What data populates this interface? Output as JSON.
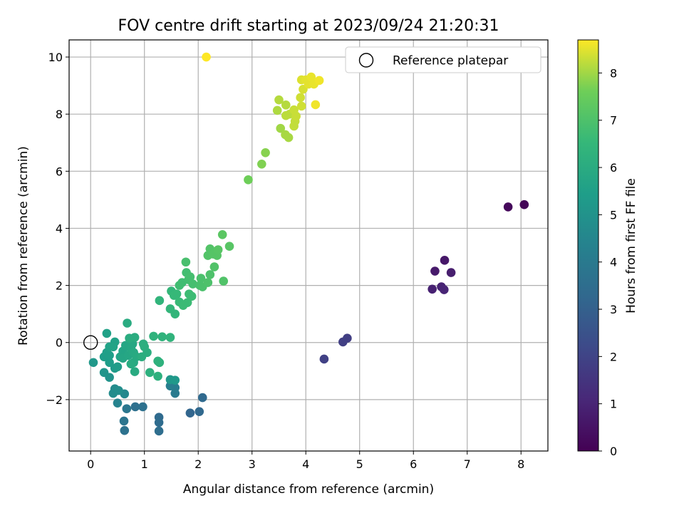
{
  "chart_data": {
    "type": "scatter",
    "title": "FOV centre drift starting at 2023/09/24 21:20:31",
    "xlabel": "Angular distance from reference (arcmin)",
    "ylabel": "Rotation from reference (arcmin)",
    "xlim": [
      -0.4,
      8.5
    ],
    "ylim": [
      -3.8,
      10.6
    ],
    "xticks": [
      0,
      1,
      2,
      3,
      4,
      5,
      6,
      7,
      8
    ],
    "yticks": [
      -2,
      0,
      2,
      4,
      6,
      8,
      10
    ],
    "grid": true,
    "legend": {
      "position": "top-right",
      "entries": [
        "Reference platepar"
      ]
    },
    "reference_point": {
      "label": "Reference platepar",
      "x": 0,
      "y": 0
    },
    "colorbar": {
      "label": "Hours from first FF file",
      "colormap": "viridis",
      "range": [
        0,
        8.7
      ],
      "ticks": [
        0,
        1,
        2,
        3,
        4,
        5,
        6,
        7,
        8
      ]
    },
    "points": [
      {
        "x": 8.06,
        "y": 4.83,
        "c": 0.1
      },
      {
        "x": 7.76,
        "y": 4.75,
        "c": 0.2
      },
      {
        "x": 6.58,
        "y": 2.88,
        "c": 0.6
      },
      {
        "x": 6.4,
        "y": 2.5,
        "c": 0.7
      },
      {
        "x": 6.7,
        "y": 2.45,
        "c": 0.8
      },
      {
        "x": 6.35,
        "y": 1.87,
        "c": 0.9
      },
      {
        "x": 6.52,
        "y": 1.95,
        "c": 0.95
      },
      {
        "x": 6.57,
        "y": 1.85,
        "c": 1.0
      },
      {
        "x": 4.77,
        "y": 0.15,
        "c": 1.8
      },
      {
        "x": 4.69,
        "y": 0.02,
        "c": 1.85
      },
      {
        "x": 4.34,
        "y": -0.58,
        "c": 1.9
      },
      {
        "x": 1.85,
        "y": -2.47,
        "c": 3.2
      },
      {
        "x": 2.02,
        "y": -2.42,
        "c": 3.3
      },
      {
        "x": 2.08,
        "y": -1.93,
        "c": 3.35
      },
      {
        "x": 1.27,
        "y": -2.62,
        "c": 3.4
      },
      {
        "x": 1.27,
        "y": -2.8,
        "c": 3.45
      },
      {
        "x": 1.27,
        "y": -3.1,
        "c": 3.5
      },
      {
        "x": 0.83,
        "y": -2.25,
        "c": 3.6
      },
      {
        "x": 0.97,
        "y": -2.25,
        "c": 3.65
      },
      {
        "x": 0.63,
        "y": -3.08,
        "c": 3.7
      },
      {
        "x": 0.62,
        "y": -2.75,
        "c": 3.8
      },
      {
        "x": 0.67,
        "y": -2.32,
        "c": 3.9
      },
      {
        "x": 1.57,
        "y": -1.78,
        "c": 4.0
      },
      {
        "x": 1.57,
        "y": -1.58,
        "c": 4.1
      },
      {
        "x": 1.48,
        "y": -1.52,
        "c": 4.2
      },
      {
        "x": 0.5,
        "y": -2.12,
        "c": 4.4
      },
      {
        "x": 0.63,
        "y": -1.8,
        "c": 4.6
      },
      {
        "x": 0.45,
        "y": -1.62,
        "c": 4.7
      },
      {
        "x": 0.42,
        "y": -1.78,
        "c": 4.75
      },
      {
        "x": 0.52,
        "y": -1.68,
        "c": 4.8
      },
      {
        "x": 0.35,
        "y": -1.22,
        "c": 5.0
      },
      {
        "x": 0.25,
        "y": -1.05,
        "c": 5.1
      },
      {
        "x": 0.05,
        "y": -0.7,
        "c": 5.2
      },
      {
        "x": 1.48,
        "y": -1.3,
        "c": 5.2
      },
      {
        "x": 1.57,
        "y": -1.32,
        "c": 5.25
      },
      {
        "x": 0.45,
        "y": -0.9,
        "c": 5.3
      },
      {
        "x": 0.5,
        "y": -0.85,
        "c": 5.35
      },
      {
        "x": 0.35,
        "y": -0.7,
        "c": 5.4
      },
      {
        "x": 0.25,
        "y": -0.5,
        "c": 5.45
      },
      {
        "x": 0.35,
        "y": -0.45,
        "c": 5.5
      },
      {
        "x": 0.3,
        "y": -0.35,
        "c": 5.5
      },
      {
        "x": 0.3,
        "y": 0.32,
        "c": 5.55
      },
      {
        "x": 0.35,
        "y": -0.15,
        "c": 5.6
      },
      {
        "x": 0.45,
        "y": 0.02,
        "c": 5.6
      },
      {
        "x": 0.42,
        "y": -0.15,
        "c": 5.65
      },
      {
        "x": 0.55,
        "y": -0.5,
        "c": 5.7
      },
      {
        "x": 0.6,
        "y": -0.3,
        "c": 5.7
      },
      {
        "x": 0.6,
        "y": -0.55,
        "c": 5.75
      },
      {
        "x": 0.65,
        "y": -0.1,
        "c": 5.8
      },
      {
        "x": 0.7,
        "y": -0.45,
        "c": 5.8
      },
      {
        "x": 0.75,
        "y": -0.2,
        "c": 5.85
      },
      {
        "x": 0.78,
        "y": -0.05,
        "c": 5.85
      },
      {
        "x": 0.8,
        "y": -0.35,
        "c": 5.9
      },
      {
        "x": 0.8,
        "y": -0.7,
        "c": 5.9
      },
      {
        "x": 0.85,
        "y": -0.5,
        "c": 5.95
      },
      {
        "x": 0.82,
        "y": -1.02,
        "c": 5.95
      },
      {
        "x": 0.75,
        "y": -0.75,
        "c": 6.0
      },
      {
        "x": 0.68,
        "y": 0.68,
        "c": 6.0
      },
      {
        "x": 0.72,
        "y": 0.15,
        "c": 6.05
      },
      {
        "x": 0.82,
        "y": 0.18,
        "c": 6.05
      },
      {
        "x": 0.95,
        "y": -0.5,
        "c": 6.1
      },
      {
        "x": 1.05,
        "y": -0.35,
        "c": 6.1
      },
      {
        "x": 1.0,
        "y": -0.15,
        "c": 6.15
      },
      {
        "x": 0.98,
        "y": -0.05,
        "c": 6.15
      },
      {
        "x": 1.1,
        "y": -1.05,
        "c": 6.2
      },
      {
        "x": 1.25,
        "y": -1.18,
        "c": 6.2
      },
      {
        "x": 1.25,
        "y": -0.65,
        "c": 6.25
      },
      {
        "x": 1.28,
        "y": -0.7,
        "c": 6.25
      },
      {
        "x": 1.17,
        "y": 0.22,
        "c": 6.3
      },
      {
        "x": 1.33,
        "y": 0.2,
        "c": 6.3
      },
      {
        "x": 1.48,
        "y": 0.18,
        "c": 6.35
      },
      {
        "x": 1.28,
        "y": 1.47,
        "c": 6.4
      },
      {
        "x": 1.48,
        "y": 1.18,
        "c": 6.45
      },
      {
        "x": 1.57,
        "y": 1.0,
        "c": 6.45
      },
      {
        "x": 1.5,
        "y": 1.8,
        "c": 6.5
      },
      {
        "x": 1.55,
        "y": 1.65,
        "c": 6.55
      },
      {
        "x": 1.6,
        "y": 1.7,
        "c": 6.55
      },
      {
        "x": 1.65,
        "y": 1.42,
        "c": 6.6
      },
      {
        "x": 1.72,
        "y": 1.3,
        "c": 6.65
      },
      {
        "x": 1.8,
        "y": 1.4,
        "c": 6.65
      },
      {
        "x": 1.83,
        "y": 1.7,
        "c": 6.7
      },
      {
        "x": 1.88,
        "y": 1.62,
        "c": 6.7
      },
      {
        "x": 1.65,
        "y": 2.0,
        "c": 6.75
      },
      {
        "x": 1.7,
        "y": 2.1,
        "c": 6.75
      },
      {
        "x": 1.78,
        "y": 2.45,
        "c": 6.8
      },
      {
        "x": 1.82,
        "y": 2.2,
        "c": 6.8
      },
      {
        "x": 1.85,
        "y": 2.3,
        "c": 6.85
      },
      {
        "x": 1.9,
        "y": 2.05,
        "c": 6.85
      },
      {
        "x": 1.77,
        "y": 2.82,
        "c": 6.9
      },
      {
        "x": 2.03,
        "y": 2.0,
        "c": 6.9
      },
      {
        "x": 2.05,
        "y": 2.25,
        "c": 6.95
      },
      {
        "x": 2.08,
        "y": 1.95,
        "c": 6.95
      },
      {
        "x": 2.18,
        "y": 2.1,
        "c": 7.0
      },
      {
        "x": 2.22,
        "y": 2.38,
        "c": 7.0
      },
      {
        "x": 2.47,
        "y": 2.15,
        "c": 7.05
      },
      {
        "x": 2.3,
        "y": 2.65,
        "c": 7.05
      },
      {
        "x": 2.18,
        "y": 3.05,
        "c": 7.1
      },
      {
        "x": 2.22,
        "y": 3.28,
        "c": 7.1
      },
      {
        "x": 2.28,
        "y": 3.1,
        "c": 7.15
      },
      {
        "x": 2.35,
        "y": 3.05,
        "c": 7.15
      },
      {
        "x": 2.37,
        "y": 3.25,
        "c": 7.2
      },
      {
        "x": 2.58,
        "y": 3.37,
        "c": 7.2
      },
      {
        "x": 2.45,
        "y": 3.78,
        "c": 7.25
      },
      {
        "x": 2.93,
        "y": 5.7,
        "c": 7.6
      },
      {
        "x": 3.18,
        "y": 6.25,
        "c": 7.75
      },
      {
        "x": 3.25,
        "y": 6.65,
        "c": 7.8
      },
      {
        "x": 3.47,
        "y": 8.13,
        "c": 8.1
      },
      {
        "x": 3.53,
        "y": 7.5,
        "c": 8.0
      },
      {
        "x": 3.62,
        "y": 7.28,
        "c": 8.05
      },
      {
        "x": 3.68,
        "y": 7.18,
        "c": 8.05
      },
      {
        "x": 3.5,
        "y": 8.5,
        "c": 8.15
      },
      {
        "x": 3.63,
        "y": 8.32,
        "c": 8.15
      },
      {
        "x": 3.63,
        "y": 7.95,
        "c": 8.2
      },
      {
        "x": 3.7,
        "y": 8.0,
        "c": 8.2
      },
      {
        "x": 3.78,
        "y": 7.58,
        "c": 8.25
      },
      {
        "x": 3.8,
        "y": 7.75,
        "c": 8.25
      },
      {
        "x": 3.82,
        "y": 7.93,
        "c": 8.3
      },
      {
        "x": 3.78,
        "y": 8.15,
        "c": 8.3
      },
      {
        "x": 3.9,
        "y": 8.58,
        "c": 8.35
      },
      {
        "x": 3.92,
        "y": 8.28,
        "c": 8.35
      },
      {
        "x": 3.95,
        "y": 8.87,
        "c": 8.4
      },
      {
        "x": 3.92,
        "y": 9.2,
        "c": 8.45
      },
      {
        "x": 4.0,
        "y": 9.2,
        "c": 8.5
      },
      {
        "x": 4.05,
        "y": 9.05,
        "c": 8.5
      },
      {
        "x": 4.1,
        "y": 9.3,
        "c": 8.55
      },
      {
        "x": 4.15,
        "y": 9.05,
        "c": 8.55
      },
      {
        "x": 4.25,
        "y": 9.18,
        "c": 8.6
      },
      {
        "x": 4.18,
        "y": 8.33,
        "c": 8.6
      },
      {
        "x": 2.15,
        "y": 10.0,
        "c": 8.7
      }
    ]
  }
}
